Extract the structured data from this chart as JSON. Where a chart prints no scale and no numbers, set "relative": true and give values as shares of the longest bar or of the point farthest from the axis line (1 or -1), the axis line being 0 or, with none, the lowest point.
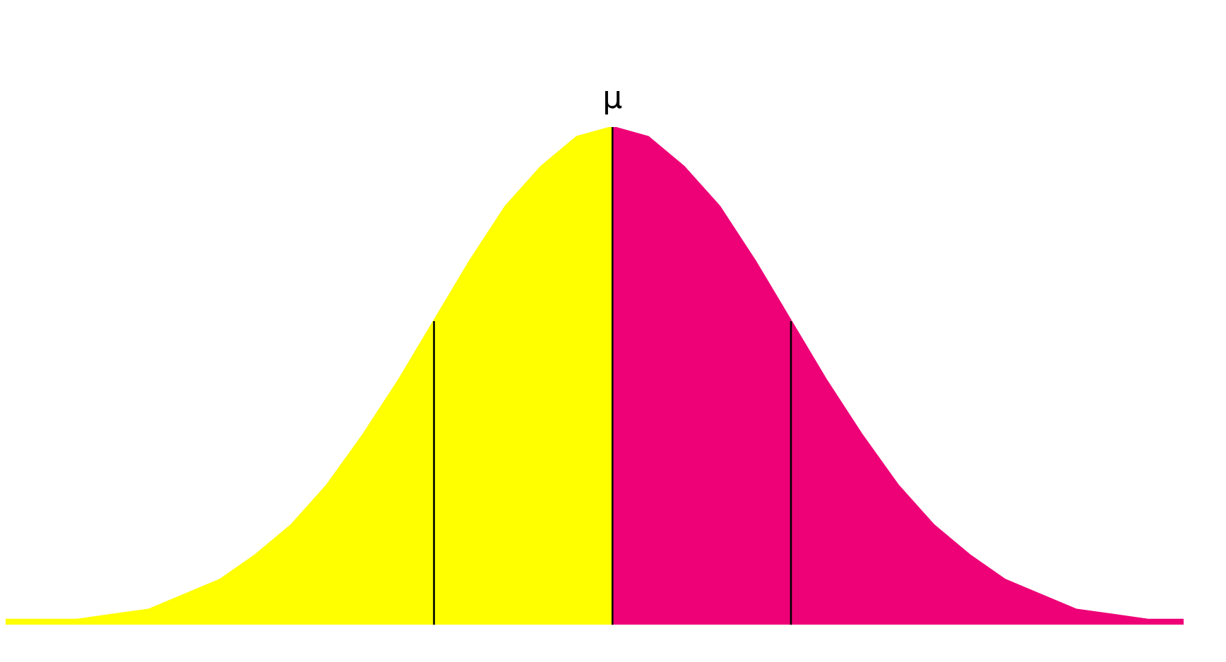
{
  "chart_data": {
    "type": "area",
    "relative": true,
    "annotations": [
      "μ"
    ],
    "categories": [
      null,
      null,
      null,
      null,
      null,
      null,
      null,
      null,
      null,
      null,
      null,
      null,
      null,
      null,
      null,
      null,
      null,
      null,
      null,
      null,
      null,
      null,
      null,
      null,
      null,
      null,
      null,
      null,
      null,
      null,
      null,
      null,
      null,
      null
    ],
    "legend": false,
    "series": [
      {
        "color": "#ffff00",
        "values": [
          0.01,
          0.01,
          0.01,
          0.02,
          0.03,
          0.06,
          0.09,
          0.14,
          0.2,
          0.28,
          0.38,
          0.49,
          0.61,
          null,
          null,
          null,
          null,
          null,
          null,
          null,
          null,
          null,
          null,
          null,
          null,
          null,
          null,
          null,
          null,
          null,
          null,
          null,
          null,
          null
        ]
      },
      {
        "color": "#ffff00",
        "values": [
          null,
          null,
          null,
          null,
          null,
          null,
          null,
          null,
          null,
          null,
          null,
          null,
          0.61,
          0.73,
          0.84,
          0.92,
          0.98,
          1,
          null,
          null,
          null,
          null,
          null,
          null,
          null,
          null,
          null,
          null,
          null,
          null,
          null,
          null,
          null,
          null
        ]
      },
      {
        "color": "#ee0077",
        "values": [
          null,
          null,
          null,
          null,
          null,
          null,
          null,
          null,
          null,
          null,
          null,
          null,
          null,
          null,
          null,
          null,
          null,
          1,
          0.98,
          0.92,
          0.84,
          0.73,
          0.61,
          null,
          null,
          null,
          null,
          null,
          null,
          null,
          null,
          null,
          null,
          null
        ]
      },
      {
        "color": "#ee0077",
        "values": [
          null,
          null,
          null,
          null,
          null,
          null,
          null,
          null,
          null,
          null,
          null,
          null,
          null,
          null,
          null,
          null,
          null,
          null,
          null,
          null,
          null,
          null,
          0.61,
          0.49,
          0.38,
          0.28,
          0.2,
          0.14,
          0.09,
          0.06,
          0.03,
          0.02,
          0.01,
          0.01
        ]
      }
    ]
  }
}
